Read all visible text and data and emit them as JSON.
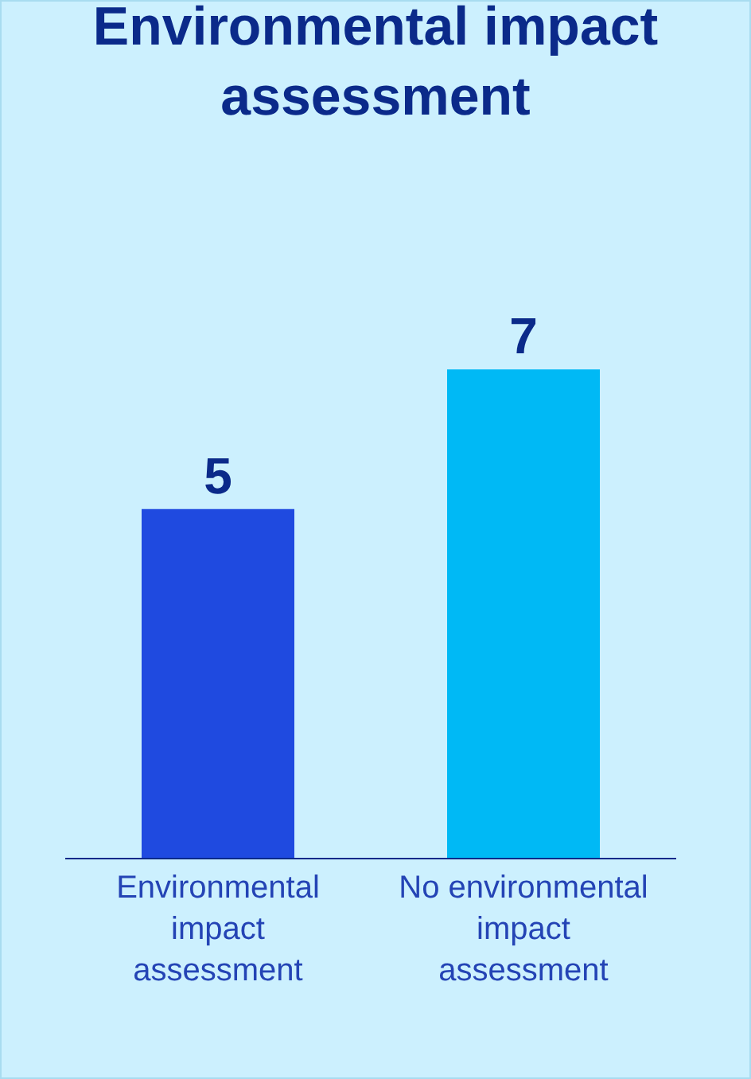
{
  "chart_data": {
    "type": "bar",
    "title": "Environmental impact assessment",
    "categories": [
      "Environmental impact assessment",
      "No environmental impact assessment"
    ],
    "values": [
      5,
      7
    ],
    "colors": [
      "#1f4ae0",
      "#00b9f5"
    ],
    "data_labels": true,
    "grid": false
  }
}
